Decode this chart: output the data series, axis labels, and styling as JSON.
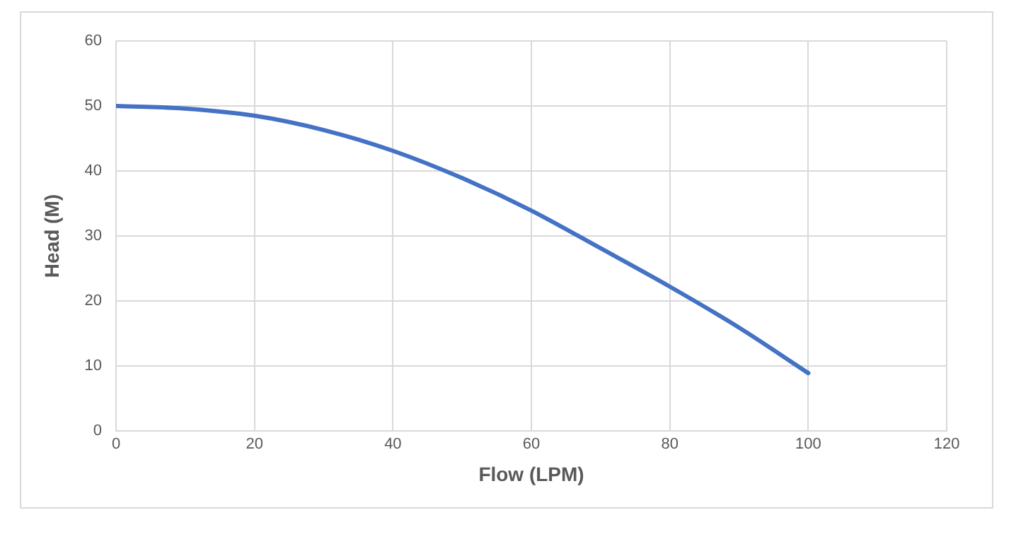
{
  "chart_data": {
    "type": "line",
    "xlabel": "Flow (LPM)",
    "ylabel": "Head (M)",
    "x": [
      0,
      10,
      20,
      30,
      40,
      50,
      60,
      70,
      80,
      90,
      100
    ],
    "series": [
      {
        "color": "#4472c4",
        "values": [
          50,
          49.6,
          48.5,
          46.3,
          43.1,
          38.9,
          33.9,
          28.1,
          22.2,
          15.9,
          8.9
        ]
      }
    ],
    "xlim": [
      0,
      120
    ],
    "xticks": [
      0,
      20,
      40,
      60,
      80,
      100,
      120
    ],
    "ylim": [
      0,
      60
    ],
    "yticks": [
      0,
      10,
      20,
      30,
      40,
      50,
      60
    ],
    "grid": true,
    "legend": false,
    "marker": "none",
    "line_style": "solid"
  }
}
